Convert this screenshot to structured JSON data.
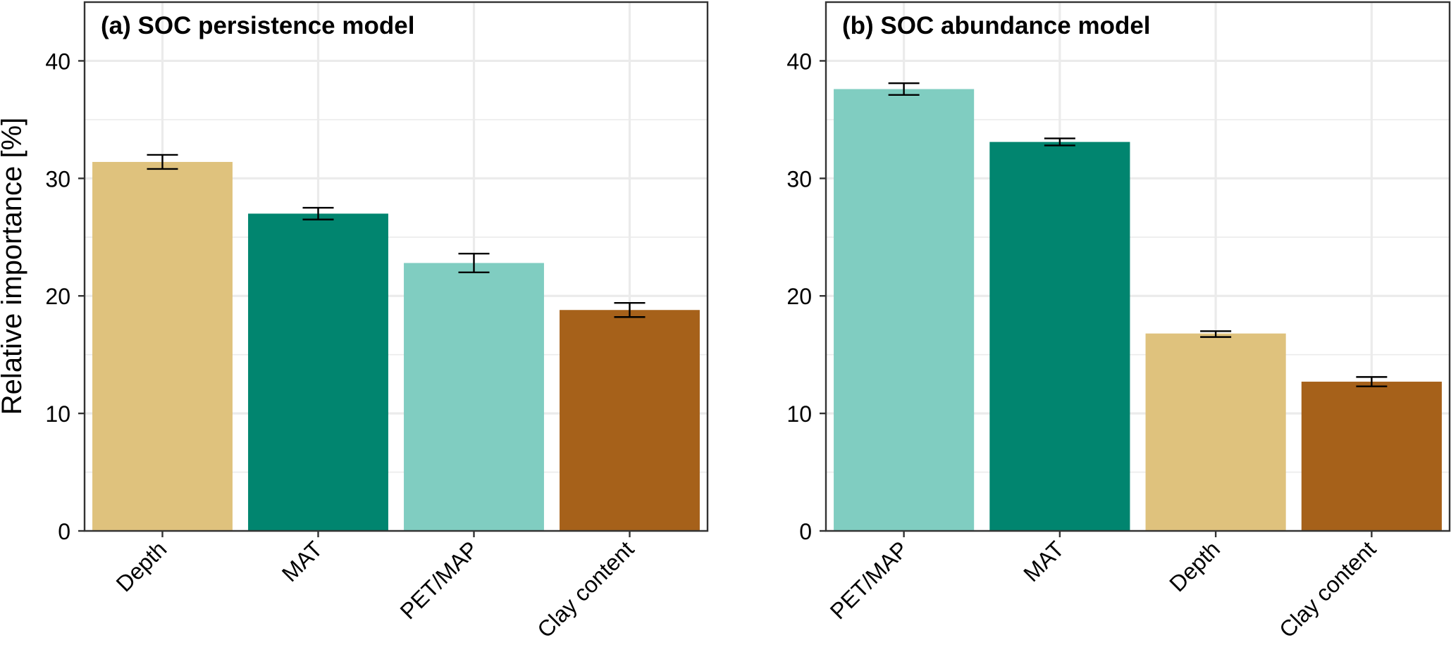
{
  "colors": {
    "Depth": "#dfc27d",
    "MAT": "#01856f",
    "PET/MAP": "#80cdc1",
    "Clay content": "#a6611a",
    "grid": "#ebebeb",
    "frame": "#333333",
    "error_bar": "#000000"
  },
  "chart_data": [
    {
      "type": "bar",
      "title": "(a) SOC persistence model",
      "ylabel": "Relative importance [%]",
      "xlabel": "",
      "ylim": [
        0,
        45
      ],
      "yticks": [
        0,
        10,
        20,
        30,
        40
      ],
      "grid": true,
      "categories": [
        "Depth",
        "MAT",
        "PET/MAP",
        "Clay content"
      ],
      "values": [
        31.4,
        27.0,
        22.8,
        18.8
      ],
      "error_low": [
        30.8,
        26.5,
        22.0,
        18.2
      ],
      "error_high": [
        32.0,
        27.5,
        23.6,
        19.4
      ]
    },
    {
      "type": "bar",
      "title": "(b) SOC abundance model",
      "ylabel": "",
      "xlabel": "",
      "ylim": [
        0,
        45
      ],
      "yticks": [
        0,
        10,
        20,
        30,
        40
      ],
      "grid": true,
      "categories": [
        "PET/MAP",
        "MAT",
        "Depth",
        "Clay content"
      ],
      "values": [
        37.6,
        33.1,
        16.8,
        12.7
      ],
      "error_low": [
        37.1,
        32.8,
        16.5,
        12.3
      ],
      "error_high": [
        38.1,
        33.4,
        17.0,
        13.1
      ]
    }
  ]
}
